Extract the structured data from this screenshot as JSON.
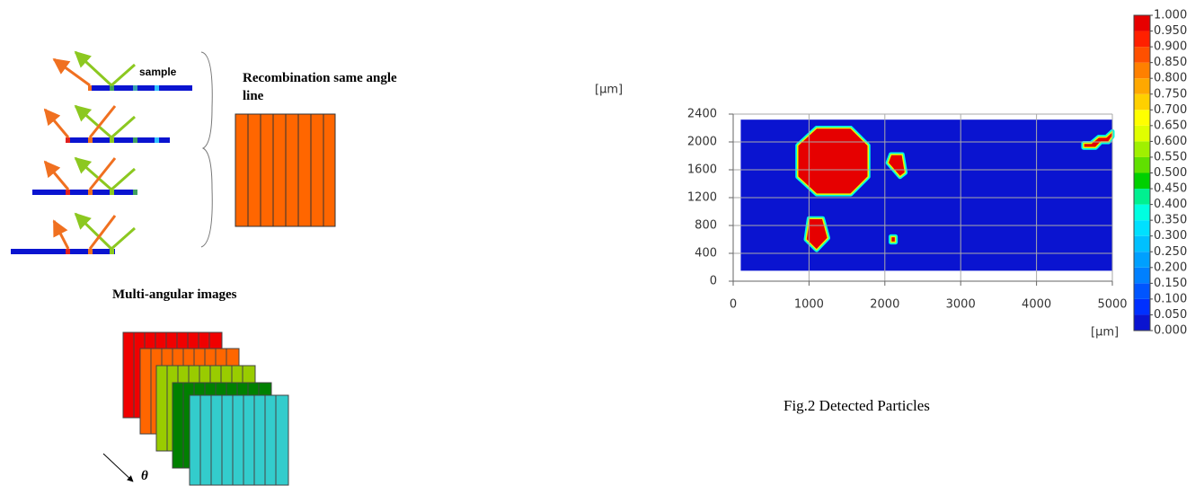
{
  "diagram": {
    "sample_label": "sample",
    "recombination_label": "Recombination same angle line",
    "images_label": "Multi-angular images",
    "angle_symbol": "θ"
  },
  "chart_data": {
    "type": "heatmap",
    "caption": "Fig.2 Detected Particles",
    "xlabel": "[μm]",
    "ylabel": "[μm]",
    "xlim": [
      0,
      5000
    ],
    "ylim": [
      0,
      2400
    ],
    "xticks": [
      0,
      1000,
      2000,
      3000,
      4000,
      5000
    ],
    "yticks": [
      0,
      400,
      800,
      1200,
      1600,
      2000,
      2400
    ],
    "grid": true,
    "background": {
      "value": 0,
      "extent": [
        100,
        5000,
        150,
        2320
      ]
    },
    "regions": [
      {
        "value": 1,
        "points": [
          [
            1100,
            2200
          ],
          [
            1550,
            2200
          ],
          [
            1780,
            1950
          ],
          [
            1780,
            1500
          ],
          [
            1550,
            1250
          ],
          [
            1100,
            1250
          ],
          [
            850,
            1500
          ],
          [
            850,
            1950
          ]
        ]
      },
      {
        "value": 1,
        "points": [
          [
            2080,
            1820
          ],
          [
            2230,
            1820
          ],
          [
            2270,
            1560
          ],
          [
            2200,
            1500
          ],
          [
            2040,
            1700
          ]
        ]
      },
      {
        "value": 1,
        "points": [
          [
            1000,
            900
          ],
          [
            1180,
            900
          ],
          [
            1250,
            620
          ],
          [
            1100,
            450
          ],
          [
            960,
            600
          ]
        ]
      },
      {
        "value": 1,
        "points": [
          [
            2080,
            640
          ],
          [
            2140,
            640
          ],
          [
            2140,
            560
          ],
          [
            2080,
            560
          ]
        ]
      },
      {
        "value": 1,
        "points": [
          [
            4620,
            1920
          ],
          [
            4780,
            1920
          ],
          [
            4850,
            2000
          ],
          [
            4950,
            2000
          ],
          [
            5000,
            2080
          ],
          [
            5000,
            2150
          ],
          [
            4920,
            2070
          ],
          [
            4820,
            2070
          ],
          [
            4720,
            1980
          ],
          [
            4620,
            1980
          ]
        ]
      }
    ],
    "colorscale": [
      "#0a14d0",
      "#0030ff",
      "#0055ff",
      "#0080ff",
      "#00a0ff",
      "#00c0ff",
      "#00e0ff",
      "#00ffe0",
      "#00f090",
      "#00d000",
      "#60e000",
      "#a0f000",
      "#e0ff00",
      "#ffff00",
      "#ffd000",
      "#ffa800",
      "#ff8000",
      "#ff5000",
      "#ff2000",
      "#e60000"
    ],
    "cticks": [
      {
        "value": 0,
        "label": "0.000"
      },
      {
        "value": 0.05,
        "label": "0.050"
      },
      {
        "value": 0.1,
        "label": "0.100"
      },
      {
        "value": 0.15,
        "label": "0.150"
      },
      {
        "value": 0.2,
        "label": "0.200"
      },
      {
        "value": 0.25,
        "label": "0.250"
      },
      {
        "value": 0.3,
        "label": "0.300"
      },
      {
        "value": 0.35,
        "label": "0.350"
      },
      {
        "value": 0.4,
        "label": "0.400"
      },
      {
        "value": 0.45,
        "label": "0.450"
      },
      {
        "value": 0.5,
        "label": "0.500"
      },
      {
        "value": 0.55,
        "label": "0.550"
      },
      {
        "value": 0.6,
        "label": "0.600"
      },
      {
        "value": 0.65,
        "label": "0.650"
      },
      {
        "value": 0.7,
        "label": "0.700"
      },
      {
        "value": 0.75,
        "label": "0.750"
      },
      {
        "value": 0.8,
        "label": "0.800"
      },
      {
        "value": 0.85,
        "label": "0.850"
      },
      {
        "value": 0.9,
        "label": "0.900"
      },
      {
        "value": 0.95,
        "label": "0.950"
      },
      {
        "value": 1,
        "label": "1.000"
      }
    ]
  }
}
